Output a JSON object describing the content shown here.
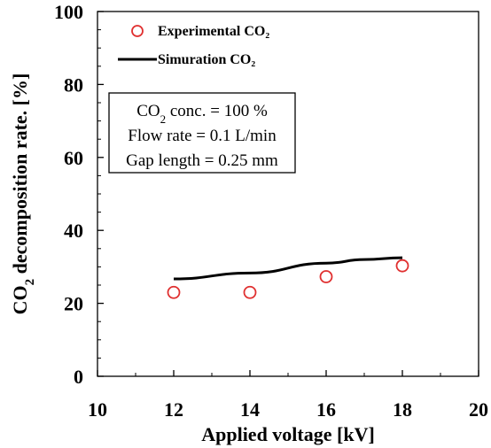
{
  "chart_data": {
    "type": "line",
    "title": "",
    "xlabel": "Applied voltage [kV]",
    "ylabel_main": "CO",
    "ylabel_sub": "2",
    "ylabel_rest": " decomposition rate. [%]",
    "xlim": [
      10,
      20
    ],
    "ylim": [
      0,
      100
    ],
    "x_ticks": [
      "10",
      "12",
      "14",
      "16",
      "18",
      "20"
    ],
    "y_ticks": [
      "0",
      "20",
      "40",
      "60",
      "80",
      "100"
    ],
    "grid": false,
    "legend_placement": "top-left",
    "series": [
      {
        "name": "Experimental CO₂",
        "kind": "scatter",
        "marker": "open-circle",
        "color": "#e03030",
        "x": [
          12,
          14,
          16,
          18
        ],
        "y": [
          23,
          23,
          27.3,
          30.3
        ]
      },
      {
        "name": "Simuration CO₂",
        "kind": "line",
        "color": "#000000",
        "x": [
          12,
          14,
          16,
          17,
          18
        ],
        "y": [
          26.7,
          28.3,
          31,
          32,
          32.5
        ]
      }
    ],
    "annotation": {
      "line1_main": "CO",
      "line1_sub": "2",
      "line1_rest": " conc. = 100 %",
      "line2": "Flow rate = 0.1 L/min",
      "line3": "Gap length = 0.25 mm"
    }
  }
}
